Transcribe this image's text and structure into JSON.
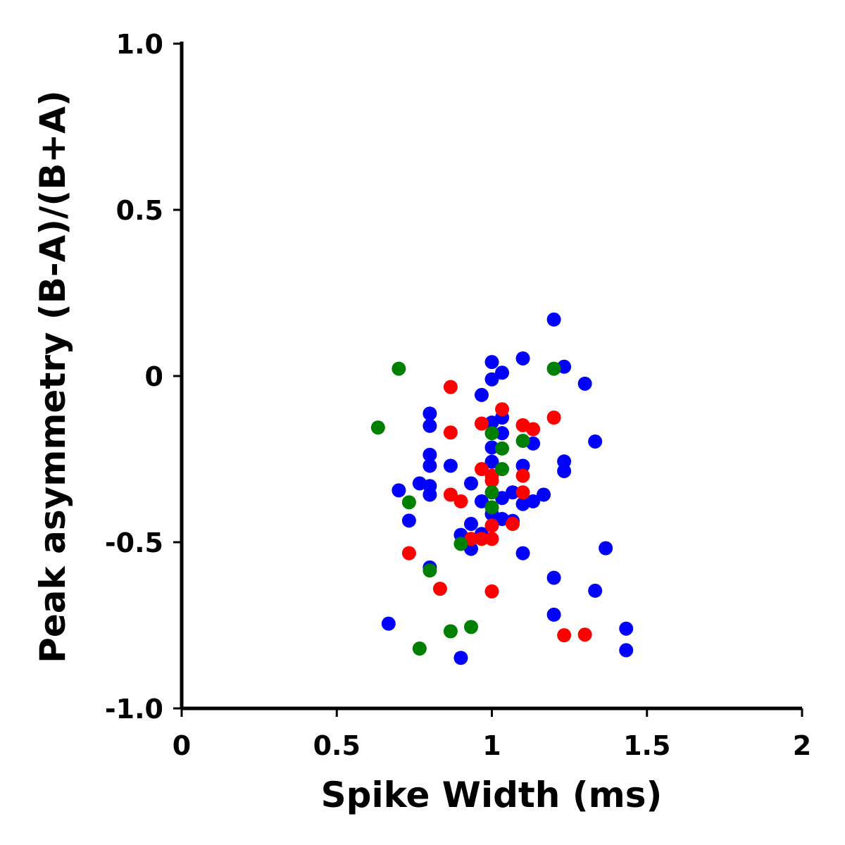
{
  "chart_data": {
    "type": "scatter",
    "title": "",
    "xlabel": "Spike Width (ms)",
    "ylabel": "Peak asymmetry (B-A)/(B+A)",
    "xlim": [
      0,
      2
    ],
    "ylim": [
      -1.0,
      1.0
    ],
    "x_ticks": [
      {
        "value": 0,
        "label": "0"
      },
      {
        "value": 0.5,
        "label": "0.5"
      },
      {
        "value": 1,
        "label": "1"
      },
      {
        "value": 1.5,
        "label": "1.5"
      },
      {
        "value": 2,
        "label": "2"
      }
    ],
    "y_ticks": [
      {
        "value": -1.0,
        "label": "-1.0"
      },
      {
        "value": -0.5,
        "label": "-0.5"
      },
      {
        "value": 0,
        "label": "0"
      },
      {
        "value": 0.5,
        "label": "0.5"
      },
      {
        "value": 1.0,
        "label": "1.0"
      }
    ],
    "grid": false,
    "series": [
      {
        "color": "#0000ff",
        "points": [
          [
            1.2,
            0.17
          ],
          [
            1.1,
            0.053
          ],
          [
            1.0,
            0.042
          ],
          [
            1.233,
            0.028
          ],
          [
            1.033,
            0.01
          ],
          [
            1.0,
            -0.01
          ],
          [
            1.3,
            -0.023
          ],
          [
            0.967,
            -0.057
          ],
          [
            0.8,
            -0.113
          ],
          [
            1.033,
            -0.125
          ],
          [
            1.0,
            -0.14
          ],
          [
            0.8,
            -0.15
          ],
          [
            1.033,
            -0.172
          ],
          [
            1.333,
            -0.197
          ],
          [
            1.133,
            -0.203
          ],
          [
            1.0,
            -0.215
          ],
          [
            0.8,
            -0.237
          ],
          [
            1.233,
            -0.257
          ],
          [
            1.0,
            -0.258
          ],
          [
            0.8,
            -0.27
          ],
          [
            0.867,
            -0.27
          ],
          [
            1.1,
            -0.27
          ],
          [
            1.233,
            -0.286
          ],
          [
            0.933,
            -0.323
          ],
          [
            0.767,
            -0.323
          ],
          [
            0.8,
            -0.331
          ],
          [
            0.7,
            -0.344
          ],
          [
            1.067,
            -0.35
          ],
          [
            0.8,
            -0.357
          ],
          [
            1.167,
            -0.357
          ],
          [
            1.033,
            -0.367
          ],
          [
            0.967,
            -0.377
          ],
          [
            1.133,
            -0.377
          ],
          [
            1.1,
            -0.385
          ],
          [
            1.0,
            -0.415
          ],
          [
            1.033,
            -0.43
          ],
          [
            0.733,
            -0.435
          ],
          [
            1.067,
            -0.436
          ],
          [
            0.933,
            -0.445
          ],
          [
            0.967,
            -0.475
          ],
          [
            0.9,
            -0.478
          ],
          [
            0.933,
            -0.52
          ],
          [
            1.367,
            -0.518
          ],
          [
            1.1,
            -0.533
          ],
          [
            0.8,
            -0.576
          ],
          [
            1.2,
            -0.607
          ],
          [
            1.333,
            -0.646
          ],
          [
            1.2,
            -0.718
          ],
          [
            0.667,
            -0.745
          ],
          [
            1.433,
            -0.76
          ],
          [
            1.433,
            -0.825
          ],
          [
            0.9,
            -0.848
          ]
        ]
      },
      {
        "color": "#ff0000",
        "points": [
          [
            0.867,
            -0.033
          ],
          [
            1.2,
            -0.125
          ],
          [
            1.033,
            -0.1
          ],
          [
            0.967,
            -0.143
          ],
          [
            1.1,
            -0.148
          ],
          [
            1.133,
            -0.16
          ],
          [
            0.867,
            -0.17
          ],
          [
            0.967,
            -0.28
          ],
          [
            1.0,
            -0.3
          ],
          [
            1.0,
            -0.315
          ],
          [
            1.1,
            -0.3
          ],
          [
            1.1,
            -0.35
          ],
          [
            0.867,
            -0.357
          ],
          [
            0.9,
            -0.377
          ],
          [
            1.067,
            -0.445
          ],
          [
            1.0,
            -0.45
          ],
          [
            0.933,
            -0.49
          ],
          [
            0.967,
            -0.49
          ],
          [
            1.0,
            -0.49
          ],
          [
            0.733,
            -0.533
          ],
          [
            0.833,
            -0.64
          ],
          [
            1.0,
            -0.648
          ],
          [
            1.233,
            -0.78
          ],
          [
            1.3,
            -0.778
          ]
        ]
      },
      {
        "color": "#008000",
        "points": [
          [
            0.7,
            0.022
          ],
          [
            1.2,
            0.022
          ],
          [
            0.633,
            -0.155
          ],
          [
            1.0,
            -0.172
          ],
          [
            1.1,
            -0.195
          ],
          [
            1.033,
            -0.218
          ],
          [
            1.033,
            -0.28
          ],
          [
            1.0,
            -0.35
          ],
          [
            0.733,
            -0.38
          ],
          [
            1.0,
            -0.395
          ],
          [
            0.9,
            -0.505
          ],
          [
            0.8,
            -0.585
          ],
          [
            0.933,
            -0.755
          ],
          [
            0.867,
            -0.768
          ],
          [
            0.767,
            -0.82
          ]
        ]
      }
    ]
  }
}
